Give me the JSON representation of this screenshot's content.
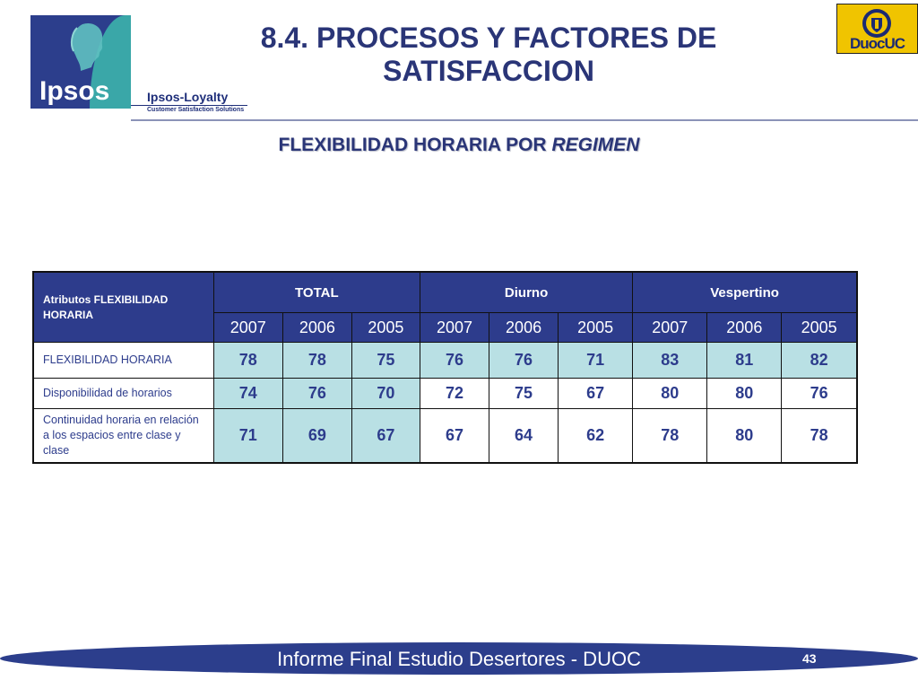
{
  "header": {
    "title": "8.4. PROCESOS Y FACTORES DE SATISFACCION",
    "logo_ipsos": "Ipsos",
    "logo_loyalty": "Ipsos-Loyalty",
    "logo_tagline": "Customer Satisfaction Solutions",
    "logo_duoc": "DuocUC"
  },
  "subtitle": {
    "prefix": "FLEXIBILIDAD HORARIA POR",
    "emphasis": "REGIMEN"
  },
  "table": {
    "attribute_header": "Atributos FLEXIBILIDAD HORARIA",
    "groups": [
      "TOTAL",
      "Diurno",
      "Vespertino"
    ],
    "years": [
      "2007",
      "2006",
      "2005",
      "2007",
      "2006",
      "2005",
      "2007",
      "2006",
      "2005"
    ],
    "rows": [
      {
        "label": "FLEXIBILIDAD HORARIA",
        "values": [
          "78",
          "78",
          "75",
          "76",
          "76",
          "71",
          "83",
          "81",
          "82"
        ]
      },
      {
        "label": "Disponibilidad de horarios",
        "values": [
          "74",
          "76",
          "70",
          "72",
          "75",
          "67",
          "80",
          "80",
          "76"
        ]
      },
      {
        "label": "Continuidad horaria en relación a los espacios entre clase y clase",
        "values": [
          "71",
          "69",
          "67",
          "67",
          "64",
          "62",
          "78",
          "80",
          "78"
        ]
      }
    ]
  },
  "colors": {
    "navy": "#2d3c8c",
    "highlight": "#b9e0e4",
    "title": "#2a3577"
  },
  "footer": {
    "text": "Informe Final Estudio Desertores - DUOC",
    "page_number": "43"
  }
}
